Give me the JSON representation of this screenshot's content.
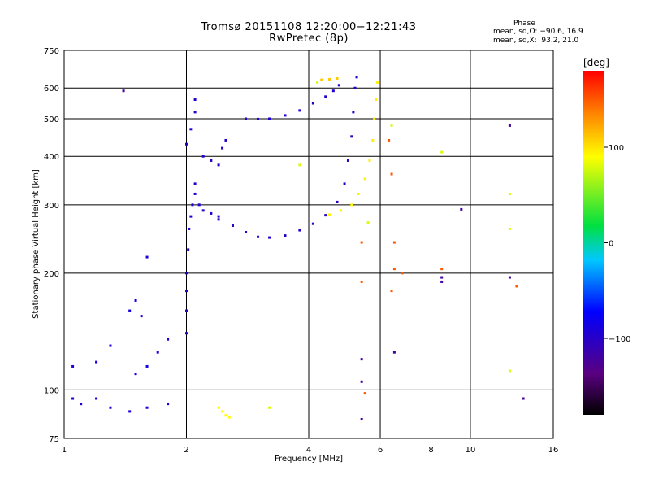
{
  "chart_data": {
    "type": "scatter",
    "title": "Tromsø 20151108 12:20:00−12:21:43",
    "subtitle": "RwPretec (8p)",
    "xlabel": "Frequency [MHz]",
    "ylabel": "Stationary phase Virtual Height [km]",
    "x_scale": "log",
    "y_scale": "log",
    "xlim": [
      1,
      16
    ],
    "ylim": [
      75,
      750
    ],
    "x_ticks": [
      1,
      2,
      4,
      6,
      8,
      10,
      16
    ],
    "x_tick_labels": [
      "1",
      "2",
      "4",
      "6",
      "8",
      "10",
      "16"
    ],
    "y_ticks": [
      75,
      100,
      200,
      300,
      400,
      500,
      600,
      750
    ],
    "y_tick_labels": [
      "75",
      "100",
      "200",
      "300",
      "400",
      "500",
      "600",
      "750"
    ],
    "grid_x": [
      2,
      4,
      6,
      8,
      10
    ],
    "grid_y": [
      100,
      200,
      300,
      400,
      500,
      600
    ],
    "phase_header": "Phase",
    "phase_stats_o": "mean, sd,O: −90.6, 16.9",
    "phase_stats_x": "mean, sd,X:  93.2, 21.0",
    "colorbar": {
      "label": "[deg]",
      "range": [
        -180,
        180
      ],
      "ticks": [
        -100,
        0,
        100
      ],
      "tick_labels": [
        "−100",
        "0",
        "100"
      ],
      "colormap": "rainbow (black–purple–blue–cyan–green–yellow–red)"
    },
    "traces": [
      {
        "name": "",
        "phase": -95,
        "points": [
          [
            2.0,
            140
          ],
          [
            2.0,
            160
          ],
          [
            2.0,
            180
          ],
          [
            2.0,
            200
          ],
          [
            2.02,
            230
          ],
          [
            2.03,
            260
          ],
          [
            2.05,
            280
          ],
          [
            2.07,
            300
          ],
          [
            2.1,
            320
          ],
          [
            2.1,
            340
          ],
          [
            2.15,
            300
          ],
          [
            2.2,
            290
          ],
          [
            2.3,
            285
          ],
          [
            2.4,
            280
          ]
        ]
      },
      {
        "name": "",
        "phase": -100,
        "points": [
          [
            2.4,
            275
          ],
          [
            2.6,
            265
          ],
          [
            2.8,
            255
          ],
          [
            3.0,
            248
          ],
          [
            3.2,
            247
          ],
          [
            3.5,
            250
          ],
          [
            3.8,
            258
          ],
          [
            4.1,
            268
          ],
          [
            4.4,
            282
          ],
          [
            4.7,
            305
          ],
          [
            4.9,
            340
          ],
          [
            5.0,
            390
          ],
          [
            5.1,
            450
          ],
          [
            5.15,
            520
          ],
          [
            5.2,
            600
          ],
          [
            5.25,
            640
          ]
        ]
      },
      {
        "name": "",
        "phase": -95,
        "points": [
          [
            2.8,
            500
          ],
          [
            3.0,
            499
          ],
          [
            3.2,
            500
          ],
          [
            3.5,
            510
          ],
          [
            3.8,
            525
          ],
          [
            4.1,
            548
          ],
          [
            4.4,
            570
          ],
          [
            4.6,
            590
          ],
          [
            4.75,
            610
          ]
        ]
      },
      {
        "name": "",
        "phase": -100,
        "points": [
          [
            2.0,
            430
          ],
          [
            2.05,
            470
          ],
          [
            2.1,
            520
          ],
          [
            2.1,
            560
          ],
          [
            2.2,
            400
          ],
          [
            2.3,
            390
          ],
          [
            2.4,
            380
          ],
          [
            2.45,
            420
          ],
          [
            2.5,
            440
          ]
        ]
      },
      {
        "name": "",
        "phase": 95,
        "points": [
          [
            4.5,
            283
          ],
          [
            4.8,
            290
          ],
          [
            5.1,
            300
          ],
          [
            5.3,
            320
          ],
          [
            5.5,
            350
          ],
          [
            5.65,
            390
          ],
          [
            5.75,
            440
          ],
          [
            5.8,
            500
          ],
          [
            5.85,
            560
          ],
          [
            5.9,
            620
          ]
        ]
      },
      {
        "name": "",
        "phase": -90,
        "points": [
          [
            1.05,
            95
          ],
          [
            1.1,
            92
          ],
          [
            1.2,
            95
          ],
          [
            1.3,
            90
          ],
          [
            1.45,
            88
          ],
          [
            1.6,
            90
          ],
          [
            1.8,
            92
          ],
          [
            1.05,
            115
          ],
          [
            1.2,
            118
          ],
          [
            1.3,
            130
          ],
          [
            1.5,
            110
          ],
          [
            1.6,
            115
          ],
          [
            1.7,
            125
          ],
          [
            1.8,
            135
          ],
          [
            1.45,
            160
          ],
          [
            1.5,
            170
          ],
          [
            1.55,
            155
          ],
          [
            1.6,
            220
          ]
        ]
      },
      {
        "name": "",
        "phase": 90,
        "points": [
          [
            2.4,
            90
          ],
          [
            2.45,
            88
          ],
          [
            2.5,
            86
          ],
          [
            2.55,
            85
          ]
        ]
      },
      {
        "name": "",
        "phase": 110,
        "points": [
          [
            4.3,
            630
          ],
          [
            4.5,
            632
          ],
          [
            4.7,
            635
          ]
        ]
      },
      {
        "name": "",
        "phase": -120,
        "points": [
          [
            1.4,
            590
          ],
          [
            5.4,
            84
          ],
          [
            5.4,
            105
          ],
          [
            5.4,
            120
          ],
          [
            6.5,
            125
          ],
          [
            8.5,
            190
          ],
          [
            8.5,
            195
          ],
          [
            9.5,
            292
          ],
          [
            12.5,
            195
          ],
          [
            13.5,
            95
          ],
          [
            12.5,
            480
          ]
        ]
      },
      {
        "name": "",
        "phase": 150,
        "points": [
          [
            5.4,
            240
          ],
          [
            5.4,
            190
          ],
          [
            6.4,
            180
          ],
          [
            6.5,
            205
          ],
          [
            6.5,
            240
          ],
          [
            6.8,
            200
          ],
          [
            8.5,
            205
          ],
          [
            13.0,
            185
          ],
          [
            5.5,
            98
          ],
          [
            6.3,
            440
          ],
          [
            6.4,
            360
          ]
        ]
      },
      {
        "name": "",
        "phase": 80,
        "points": [
          [
            5.6,
            270
          ],
          [
            6.4,
            480
          ],
          [
            8.5,
            410
          ],
          [
            12.5,
            320
          ],
          [
            12.5,
            260
          ],
          [
            12.5,
            112
          ],
          [
            3.2,
            90
          ],
          [
            3.8,
            380
          ],
          [
            4.2,
            620
          ]
        ]
      }
    ]
  }
}
